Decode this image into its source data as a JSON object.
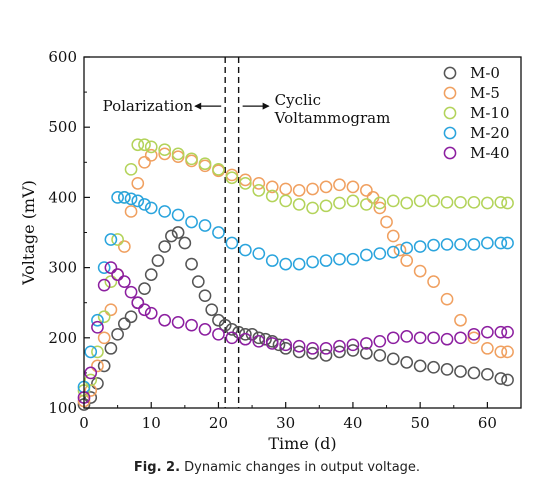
{
  "caption": {
    "label": "Fig. 2.",
    "text": "Dynamic changes in output voltage."
  },
  "chart_data": {
    "type": "scatter",
    "title": "",
    "xlabel": "Time (d)",
    "ylabel": "Voltage (mV)",
    "xlim": [
      0,
      65
    ],
    "ylim": [
      100,
      600
    ],
    "xticks": [
      0,
      10,
      20,
      30,
      40,
      50,
      60
    ],
    "yticks": [
      100,
      200,
      300,
      400,
      500,
      600
    ],
    "marker": "open-circle",
    "legend_position": "top-right",
    "annotations": [
      {
        "name": "polarization",
        "text": "Polarization",
        "x": 21,
        "y": 530,
        "arrow": "left"
      },
      {
        "name": "cyclic",
        "text_line1": "Cyclic",
        "text_line2": "Voltammogram",
        "x": 23,
        "y": 530,
        "arrow": "right"
      }
    ],
    "vlines": [
      21,
      23
    ],
    "series": [
      {
        "name": "M-0",
        "color": "#555555",
        "points": [
          [
            0,
            105
          ],
          [
            1,
            115
          ],
          [
            2,
            135
          ],
          [
            3,
            160
          ],
          [
            4,
            185
          ],
          [
            5,
            205
          ],
          [
            6,
            220
          ],
          [
            7,
            230
          ],
          [
            8,
            250
          ],
          [
            9,
            270
          ],
          [
            10,
            290
          ],
          [
            11,
            310
          ],
          [
            12,
            330
          ],
          [
            13,
            345
          ],
          [
            14,
            350
          ],
          [
            15,
            335
          ],
          [
            16,
            305
          ],
          [
            17,
            280
          ],
          [
            18,
            260
          ],
          [
            19,
            240
          ],
          [
            20,
            225
          ],
          [
            21,
            218
          ],
          [
            22,
            212
          ],
          [
            23,
            208
          ],
          [
            24,
            205
          ],
          [
            25,
            205
          ],
          [
            26,
            200
          ],
          [
            27,
            198
          ],
          [
            28,
            195
          ],
          [
            29,
            190
          ],
          [
            30,
            185
          ],
          [
            32,
            180
          ],
          [
            34,
            178
          ],
          [
            36,
            175
          ],
          [
            38,
            180
          ],
          [
            40,
            182
          ],
          [
            42,
            178
          ],
          [
            44,
            175
          ],
          [
            46,
            170
          ],
          [
            48,
            165
          ],
          [
            50,
            160
          ],
          [
            52,
            158
          ],
          [
            54,
            155
          ],
          [
            56,
            152
          ],
          [
            58,
            150
          ],
          [
            60,
            148
          ],
          [
            62,
            142
          ],
          [
            63,
            140
          ]
        ]
      },
      {
        "name": "M-5",
        "color": "#f0a060",
        "points": [
          [
            0,
            110
          ],
          [
            1,
            125
          ],
          [
            2,
            160
          ],
          [
            3,
            200
          ],
          [
            4,
            240
          ],
          [
            5,
            290
          ],
          [
            6,
            330
          ],
          [
            7,
            380
          ],
          [
            8,
            420
          ],
          [
            9,
            450
          ],
          [
            10,
            460
          ],
          [
            12,
            462
          ],
          [
            14,
            458
          ],
          [
            16,
            452
          ],
          [
            18,
            445
          ],
          [
            20,
            438
          ],
          [
            22,
            432
          ],
          [
            24,
            425
          ],
          [
            26,
            420
          ],
          [
            28,
            415
          ],
          [
            30,
            412
          ],
          [
            32,
            410
          ],
          [
            34,
            412
          ],
          [
            36,
            415
          ],
          [
            38,
            418
          ],
          [
            40,
            415
          ],
          [
            42,
            410
          ],
          [
            43,
            400
          ],
          [
            44,
            385
          ],
          [
            45,
            365
          ],
          [
            46,
            345
          ],
          [
            47,
            325
          ],
          [
            48,
            310
          ],
          [
            50,
            295
          ],
          [
            52,
            280
          ],
          [
            54,
            255
          ],
          [
            56,
            225
          ],
          [
            58,
            200
          ],
          [
            60,
            185
          ],
          [
            62,
            180
          ],
          [
            63,
            180
          ]
        ]
      },
      {
        "name": "M-10",
        "color": "#b3d35a",
        "points": [
          [
            0,
            125
          ],
          [
            1,
            140
          ],
          [
            2,
            180
          ],
          [
            3,
            230
          ],
          [
            4,
            280
          ],
          [
            5,
            340
          ],
          [
            6,
            400
          ],
          [
            7,
            440
          ],
          [
            8,
            475
          ],
          [
            9,
            475
          ],
          [
            10,
            472
          ],
          [
            12,
            468
          ],
          [
            14,
            462
          ],
          [
            16,
            455
          ],
          [
            18,
            448
          ],
          [
            20,
            440
          ],
          [
            22,
            428
          ],
          [
            24,
            420
          ],
          [
            26,
            410
          ],
          [
            28,
            402
          ],
          [
            30,
            395
          ],
          [
            32,
            390
          ],
          [
            34,
            385
          ],
          [
            36,
            388
          ],
          [
            38,
            392
          ],
          [
            40,
            395
          ],
          [
            42,
            390
          ],
          [
            44,
            392
          ],
          [
            46,
            395
          ],
          [
            48,
            392
          ],
          [
            50,
            395
          ],
          [
            52,
            395
          ],
          [
            54,
            393
          ],
          [
            56,
            393
          ],
          [
            58,
            393
          ],
          [
            60,
            392
          ],
          [
            62,
            393
          ],
          [
            63,
            392
          ]
        ]
      },
      {
        "name": "M-20",
        "color": "#2aa4dd",
        "points": [
          [
            0,
            130
          ],
          [
            1,
            180
          ],
          [
            2,
            225
          ],
          [
            3,
            300
          ],
          [
            4,
            340
          ],
          [
            5,
            400
          ],
          [
            6,
            400
          ],
          [
            7,
            398
          ],
          [
            8,
            395
          ],
          [
            9,
            390
          ],
          [
            10,
            385
          ],
          [
            12,
            380
          ],
          [
            14,
            375
          ],
          [
            16,
            365
          ],
          [
            18,
            360
          ],
          [
            20,
            350
          ],
          [
            22,
            335
          ],
          [
            24,
            325
          ],
          [
            26,
            320
          ],
          [
            28,
            310
          ],
          [
            30,
            305
          ],
          [
            32,
            305
          ],
          [
            34,
            308
          ],
          [
            36,
            310
          ],
          [
            38,
            312
          ],
          [
            40,
            312
          ],
          [
            42,
            318
          ],
          [
            44,
            320
          ],
          [
            46,
            322
          ],
          [
            48,
            328
          ],
          [
            50,
            330
          ],
          [
            52,
            332
          ],
          [
            54,
            333
          ],
          [
            56,
            333
          ],
          [
            58,
            333
          ],
          [
            60,
            335
          ],
          [
            62,
            335
          ],
          [
            63,
            335
          ]
        ]
      },
      {
        "name": "M-40",
        "color": "#8c1fa0",
        "points": [
          [
            0,
            115
          ],
          [
            1,
            150
          ],
          [
            2,
            215
          ],
          [
            3,
            275
          ],
          [
            4,
            300
          ],
          [
            5,
            290
          ],
          [
            6,
            280
          ],
          [
            7,
            265
          ],
          [
            8,
            250
          ],
          [
            9,
            240
          ],
          [
            10,
            235
          ],
          [
            12,
            225
          ],
          [
            14,
            222
          ],
          [
            16,
            218
          ],
          [
            18,
            212
          ],
          [
            20,
            205
          ],
          [
            22,
            200
          ],
          [
            24,
            198
          ],
          [
            26,
            195
          ],
          [
            28,
            192
          ],
          [
            30,
            190
          ],
          [
            32,
            188
          ],
          [
            34,
            185
          ],
          [
            36,
            185
          ],
          [
            38,
            188
          ],
          [
            40,
            190
          ],
          [
            42,
            192
          ],
          [
            44,
            195
          ],
          [
            46,
            200
          ],
          [
            48,
            202
          ],
          [
            50,
            200
          ],
          [
            52,
            200
          ],
          [
            54,
            198
          ],
          [
            56,
            200
          ],
          [
            58,
            205
          ],
          [
            60,
            208
          ],
          [
            62,
            208
          ],
          [
            63,
            208
          ]
        ]
      }
    ]
  }
}
